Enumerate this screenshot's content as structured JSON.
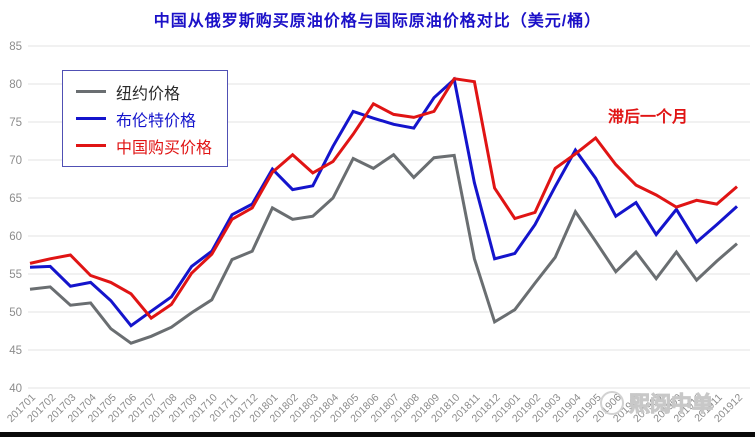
{
  "watermark": {
    "text": "熙阅中单"
  },
  "colors": {
    "title": "#1b10c8",
    "annotation": "#e01414",
    "grid": "#e3e3e3",
    "tick": "#8c8c8c",
    "legend_border": "#5050b4",
    "watermark": "#d6d6d6",
    "bottom_bar": "#0a0a0a"
  },
  "chart_data": {
    "type": "line",
    "title": "中国从俄罗斯购买原油价格与国际原油价格对比（美元/桶）",
    "annotation": "滞后一个月",
    "xlabel": "",
    "ylabel": "",
    "ylim": [
      40,
      85
    ],
    "ytick_step": 5,
    "grid": true,
    "legend_position": "upper-left",
    "categories": [
      "201701",
      "201702",
      "201703",
      "201704",
      "201705",
      "201706",
      "201707",
      "201708",
      "201709",
      "201710",
      "201711",
      "201712",
      "201801",
      "201802",
      "201803",
      "201804",
      "201805",
      "201806",
      "201807",
      "201808",
      "201809",
      "201810",
      "201811",
      "201812",
      "201901",
      "201902",
      "201903",
      "201904",
      "201905",
      "201906",
      "201907",
      "201908",
      "201909",
      "201910",
      "201911",
      "201912"
    ],
    "series": [
      {
        "name": "纽约价格",
        "key": "ny",
        "color": "#6a6e71",
        "label_color": "#2b2b2b",
        "values": [
          53.0,
          53.3,
          50.9,
          51.2,
          47.8,
          45.9,
          46.8,
          48.0,
          49.9,
          51.6,
          56.9,
          58.0,
          63.7,
          62.2,
          62.6,
          65.0,
          70.2,
          68.9,
          70.7,
          67.7,
          70.3,
          70.6,
          57.0,
          48.7,
          50.3,
          53.8,
          57.2,
          63.2,
          59.3,
          55.3,
          57.9,
          54.4,
          57.9,
          54.2,
          56.7,
          59.0
        ]
      },
      {
        "name": "布伦特价格",
        "key": "brent",
        "color": "#1414cc",
        "label_color": "#1414cc",
        "values": [
          55.9,
          56.0,
          53.4,
          53.9,
          51.5,
          48.2,
          50.1,
          52.0,
          56.0,
          58.0,
          62.8,
          64.2,
          68.8,
          66.1,
          66.6,
          71.8,
          76.4,
          75.5,
          74.7,
          74.2,
          78.2,
          80.6,
          67.0,
          57.0,
          57.7,
          61.5,
          66.5,
          71.3,
          67.6,
          62.6,
          64.4,
          60.2,
          63.5,
          59.2,
          61.5,
          63.9
        ]
      },
      {
        "name": "中国购买价格",
        "key": "china",
        "color": "#e01414",
        "label_color": "#e01414",
        "values": [
          56.4,
          57.0,
          57.5,
          54.8,
          53.9,
          52.4,
          49.2,
          51.0,
          55.1,
          57.6,
          62.2,
          63.7,
          68.4,
          70.7,
          68.3,
          69.8,
          73.4,
          77.4,
          76.0,
          75.6,
          76.4,
          80.7,
          80.3,
          66.3,
          62.3,
          63.1,
          68.9,
          70.8,
          72.9,
          69.4,
          66.7,
          65.4,
          63.8,
          64.7,
          64.2,
          66.5
        ]
      }
    ]
  }
}
